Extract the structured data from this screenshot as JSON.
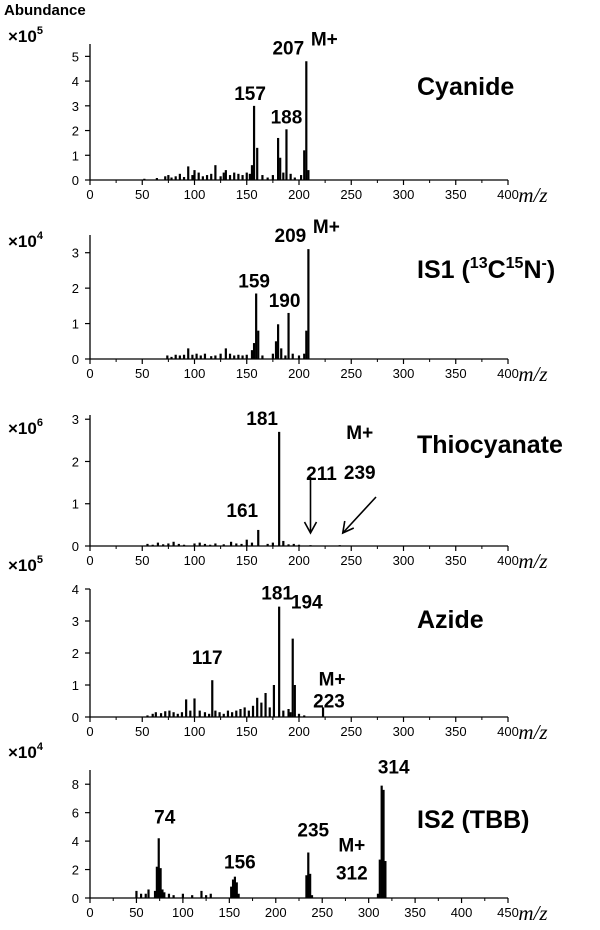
{
  "figure": {
    "y_axis_label": "Abundance"
  },
  "chart_data": [
    {
      "type": "bar",
      "title": "Cyanide",
      "ylabel": "Abundance",
      "xlabel": "m/z",
      "multiplier": {
        "base": "×10",
        "exp": "5"
      },
      "xlim": [
        0,
        400
      ],
      "ylim": [
        0,
        5.5
      ],
      "xticks": [
        0,
        50,
        100,
        150,
        200,
        250,
        300,
        350,
        400
      ],
      "yticks": [
        0,
        1,
        2,
        3,
        4,
        5
      ],
      "series": [
        {
          "x": [
            52,
            64,
            72,
            75,
            78,
            82,
            86,
            90,
            94,
            98,
            100,
            104,
            108,
            112,
            116,
            120,
            125,
            128,
            130,
            134,
            138,
            142,
            146,
            150,
            153,
            155,
            157,
            160,
            165,
            170,
            175,
            180,
            182,
            185,
            188,
            192,
            196,
            202,
            205,
            207,
            209
          ],
          "values": [
            0.05,
            0.08,
            0.15,
            0.2,
            0.1,
            0.15,
            0.25,
            0.12,
            0.55,
            0.2,
            0.4,
            0.3,
            0.15,
            0.2,
            0.25,
            0.6,
            0.15,
            0.3,
            0.4,
            0.2,
            0.3,
            0.25,
            0.2,
            0.3,
            0.25,
            0.6,
            3.0,
            1.3,
            0.2,
            0.1,
            0.2,
            1.7,
            0.9,
            0.3,
            2.05,
            0.25,
            0.1,
            0.2,
            1.2,
            4.8,
            0.4
          ]
        }
      ],
      "annotations": [
        {
          "text": "207",
          "x": 207,
          "y": 4.8
        },
        {
          "text": "M+",
          "x": 207,
          "y": 4.8
        },
        {
          "text": "157",
          "x": 157,
          "y": 3.0
        },
        {
          "text": "188",
          "x": 188,
          "y": 2.05
        }
      ]
    },
    {
      "type": "bar",
      "title": "IS1 (13C15N-)",
      "title_parts": {
        "main": "IS1 (",
        "sup1": "13",
        "mid": "C",
        "sup2": "15",
        "end": "N",
        "sup3": "-",
        "close": ")"
      },
      "ylabel": "Abundance",
      "xlabel": "m/z",
      "multiplier": {
        "base": "×10",
        "exp": "4"
      },
      "xlim": [
        0,
        400
      ],
      "ylim": [
        0,
        3.5
      ],
      "xticks": [
        0,
        50,
        100,
        150,
        200,
        250,
        300,
        350,
        400
      ],
      "yticks": [
        0,
        1,
        2,
        3
      ],
      "series": [
        {
          "x": [
            74,
            78,
            82,
            86,
            90,
            94,
            98,
            102,
            106,
            110,
            116,
            120,
            125,
            130,
            134,
            138,
            142,
            146,
            150,
            155,
            157,
            159,
            161,
            165,
            175,
            178,
            180,
            183,
            187,
            190,
            194,
            200,
            205,
            207,
            209
          ],
          "values": [
            0.1,
            0.06,
            0.12,
            0.1,
            0.12,
            0.3,
            0.12,
            0.15,
            0.1,
            0.15,
            0.08,
            0.1,
            0.15,
            0.3,
            0.15,
            0.1,
            0.12,
            0.1,
            0.12,
            0.25,
            0.45,
            1.85,
            0.8,
            0.1,
            0.15,
            0.5,
            0.98,
            0.3,
            0.1,
            1.3,
            0.15,
            0.1,
            0.15,
            0.8,
            3.1
          ]
        }
      ],
      "annotations": [
        {
          "text": "209",
          "x": 209,
          "y": 3.1
        },
        {
          "text": "M+",
          "x": 209,
          "y": 3.1
        },
        {
          "text": "159",
          "x": 159,
          "y": 1.85
        },
        {
          "text": "190",
          "x": 190,
          "y": 1.3
        }
      ]
    },
    {
      "type": "bar",
      "title": "Thiocyanate",
      "ylabel": "Abundance",
      "xlabel": "m/z",
      "multiplier": {
        "base": "×10",
        "exp": "6"
      },
      "xlim": [
        0,
        400
      ],
      "ylim": [
        0,
        3.1
      ],
      "xticks": [
        0,
        50,
        100,
        150,
        200,
        250,
        300,
        350,
        400
      ],
      "yticks": [
        0,
        1,
        2,
        3
      ],
      "series": [
        {
          "x": [
            55,
            60,
            65,
            70,
            75,
            80,
            85,
            90,
            100,
            105,
            110,
            115,
            120,
            128,
            135,
            140,
            145,
            150,
            155,
            161,
            170,
            175,
            181,
            185,
            190,
            195,
            200,
            211,
            239
          ],
          "values": [
            0.05,
            0.03,
            0.08,
            0.04,
            0.06,
            0.1,
            0.05,
            0.03,
            0.06,
            0.08,
            0.05,
            0.03,
            0.06,
            0.04,
            0.1,
            0.06,
            0.05,
            0.15,
            0.08,
            0.38,
            0.05,
            0.08,
            2.7,
            0.12,
            0.04,
            0.05,
            0.03,
            0.02,
            0.02
          ]
        }
      ],
      "annotations": [
        {
          "text": "181",
          "x": 181,
          "y": 2.7
        },
        {
          "text": "161",
          "x": 161,
          "y": 0.38
        },
        {
          "text": "211",
          "x": 211,
          "y": 0.02
        },
        {
          "text": "M+",
          "x": 239,
          "y": 0.02
        },
        {
          "text": "239",
          "x": 239,
          "y": 0.02
        }
      ]
    },
    {
      "type": "bar",
      "title": "Azide",
      "ylabel": "Abundance",
      "xlabel": "m/z",
      "multiplier": {
        "base": "×10",
        "exp": "5"
      },
      "xlim": [
        0,
        400
      ],
      "ylim": [
        0,
        4
      ],
      "xticks": [
        0,
        50,
        100,
        150,
        200,
        250,
        300,
        350,
        400
      ],
      "yticks": [
        0,
        1,
        2,
        3,
        4
      ],
      "series": [
        {
          "x": [
            55,
            60,
            63,
            68,
            72,
            76,
            80,
            84,
            88,
            92,
            96,
            100,
            105,
            110,
            114,
            117,
            120,
            124,
            128,
            132,
            136,
            140,
            144,
            148,
            152,
            156,
            160,
            164,
            168,
            172,
            176,
            181,
            185,
            190,
            192,
            194,
            196,
            200,
            205,
            223
          ],
          "values": [
            0.05,
            0.1,
            0.15,
            0.12,
            0.18,
            0.2,
            0.15,
            0.1,
            0.15,
            0.55,
            0.2,
            0.58,
            0.2,
            0.15,
            0.1,
            1.15,
            0.2,
            0.15,
            0.1,
            0.2,
            0.15,
            0.2,
            0.25,
            0.3,
            0.2,
            0.35,
            0.6,
            0.45,
            0.75,
            0.3,
            1.0,
            3.45,
            0.2,
            0.25,
            0.15,
            2.45,
            1.0,
            0.1,
            0.05,
            0.3
          ]
        }
      ],
      "annotations": [
        {
          "text": "181",
          "x": 181,
          "y": 3.45
        },
        {
          "text": "194",
          "x": 194,
          "y": 2.45
        },
        {
          "text": "117",
          "x": 117,
          "y": 1.15
        },
        {
          "text": "M+",
          "x": 223,
          "y": 0.3
        },
        {
          "text": "223",
          "x": 223,
          "y": 0.3
        }
      ]
    },
    {
      "type": "bar",
      "title": "IS2 (TBB)",
      "ylabel": "Abundance",
      "xlabel": "m/z",
      "multiplier": {
        "base": "×10",
        "exp": "4"
      },
      "xlim": [
        0,
        450
      ],
      "ylim": [
        0,
        9
      ],
      "xticks": [
        0,
        50,
        100,
        150,
        200,
        250,
        300,
        350,
        400,
        450
      ],
      "yticks": [
        0,
        2,
        4,
        6,
        8
      ],
      "series": [
        {
          "x": [
            50,
            55,
            60,
            63,
            70,
            72,
            74,
            76,
            78,
            80,
            85,
            90,
            100,
            110,
            120,
            125,
            130,
            152,
            154,
            156,
            158,
            160,
            233,
            235,
            237,
            239,
            310,
            312,
            314,
            316,
            318
          ],
          "values": [
            0.5,
            0.3,
            0.3,
            0.6,
            0.5,
            2.2,
            4.2,
            2.1,
            0.6,
            0.4,
            0.3,
            0.2,
            0.3,
            0.2,
            0.5,
            0.2,
            0.3,
            0.8,
            1.3,
            1.5,
            1.1,
            0.3,
            1.6,
            3.2,
            1.7,
            0.2,
            0.3,
            2.7,
            7.9,
            7.6,
            2.6
          ]
        }
      ],
      "annotations": [
        {
          "text": "314",
          "x": 314,
          "y": 7.9
        },
        {
          "text": "M+",
          "x": 312,
          "y": 2.7
        },
        {
          "text": "312",
          "x": 312,
          "y": 2.7
        },
        {
          "text": "74",
          "x": 74,
          "y": 4.2
        },
        {
          "text": "156",
          "x": 156,
          "y": 1.5
        },
        {
          "text": "235",
          "x": 235,
          "y": 3.2
        }
      ]
    }
  ]
}
